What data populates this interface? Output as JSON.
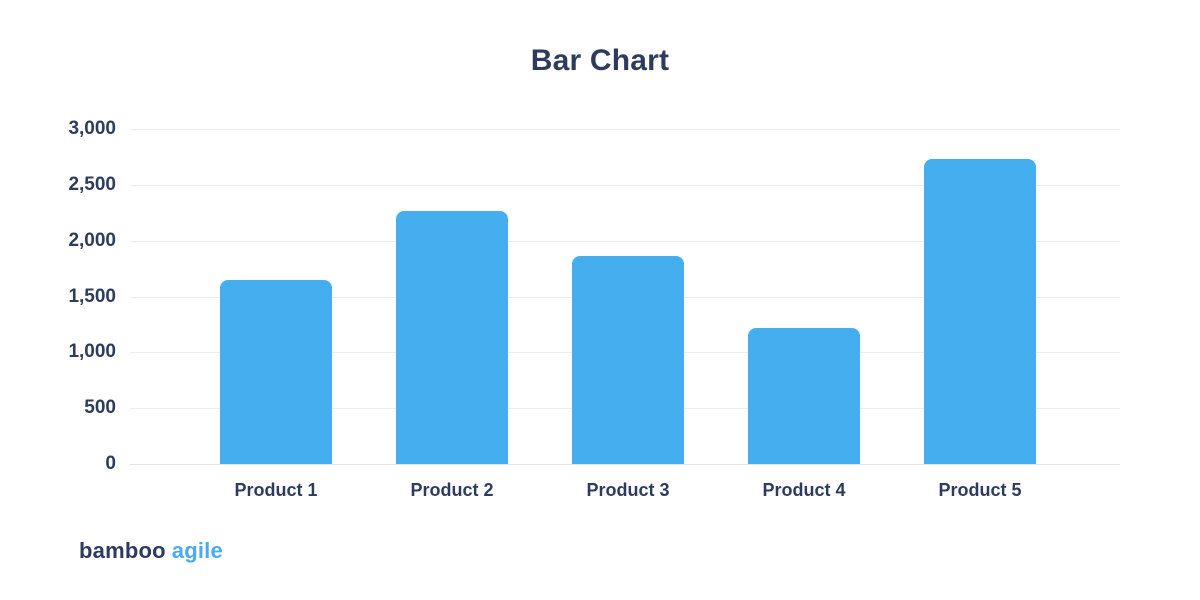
{
  "title": "Bar Chart",
  "logo": {
    "part1": "bamboo",
    "part2": "agile"
  },
  "colors": {
    "background": "#ffffff",
    "bar": "#45aeef",
    "navy": "#2d3c5e",
    "logo_accent": "#4babf2",
    "gridline": "#ededed",
    "zero_line": "#e3e3e3"
  },
  "chart_data": {
    "type": "bar",
    "title": "Bar Chart",
    "categories": [
      "Product 1",
      "Product 2",
      "Product 3",
      "Product 4",
      "Product 5"
    ],
    "values": [
      1650,
      2270,
      1860,
      1220,
      2730
    ],
    "xlabel": "",
    "ylabel": "",
    "ylim": [
      0,
      3000
    ],
    "yticks": [
      0,
      500,
      1000,
      1500,
      2000,
      2500,
      3000
    ],
    "ytick_labels": [
      "0",
      "500",
      "1,000",
      "1,500",
      "2,000",
      "2,500",
      "3,000"
    ],
    "grid": true,
    "legend": false
  }
}
